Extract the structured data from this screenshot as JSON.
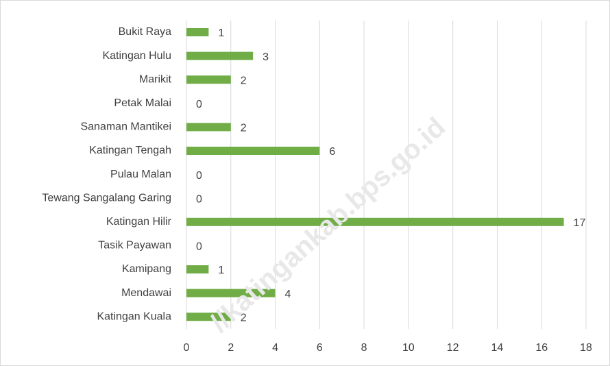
{
  "chart_data": {
    "type": "bar",
    "orientation": "horizontal",
    "categories": [
      "Bukit Raya",
      "Katingan Hulu",
      "Marikit",
      "Petak Malai",
      "Sanaman Mantikei",
      "Katingan Tengah",
      "Pulau Malan",
      "Tewang Sangalang Garing",
      "Katingan Hilir",
      "Tasik Payawan",
      "Kamipang",
      "Mendawai",
      "Katingan Kuala"
    ],
    "values": [
      1,
      3,
      2,
      0,
      2,
      6,
      0,
      0,
      17,
      0,
      1,
      4,
      2
    ],
    "color": "#70ad47",
    "xlim": [
      0,
      18
    ],
    "xticks": [
      0,
      2,
      4,
      6,
      8,
      10,
      12,
      14,
      16,
      18
    ],
    "grid": true,
    "watermark": "//katingankab.bps.go.id"
  }
}
